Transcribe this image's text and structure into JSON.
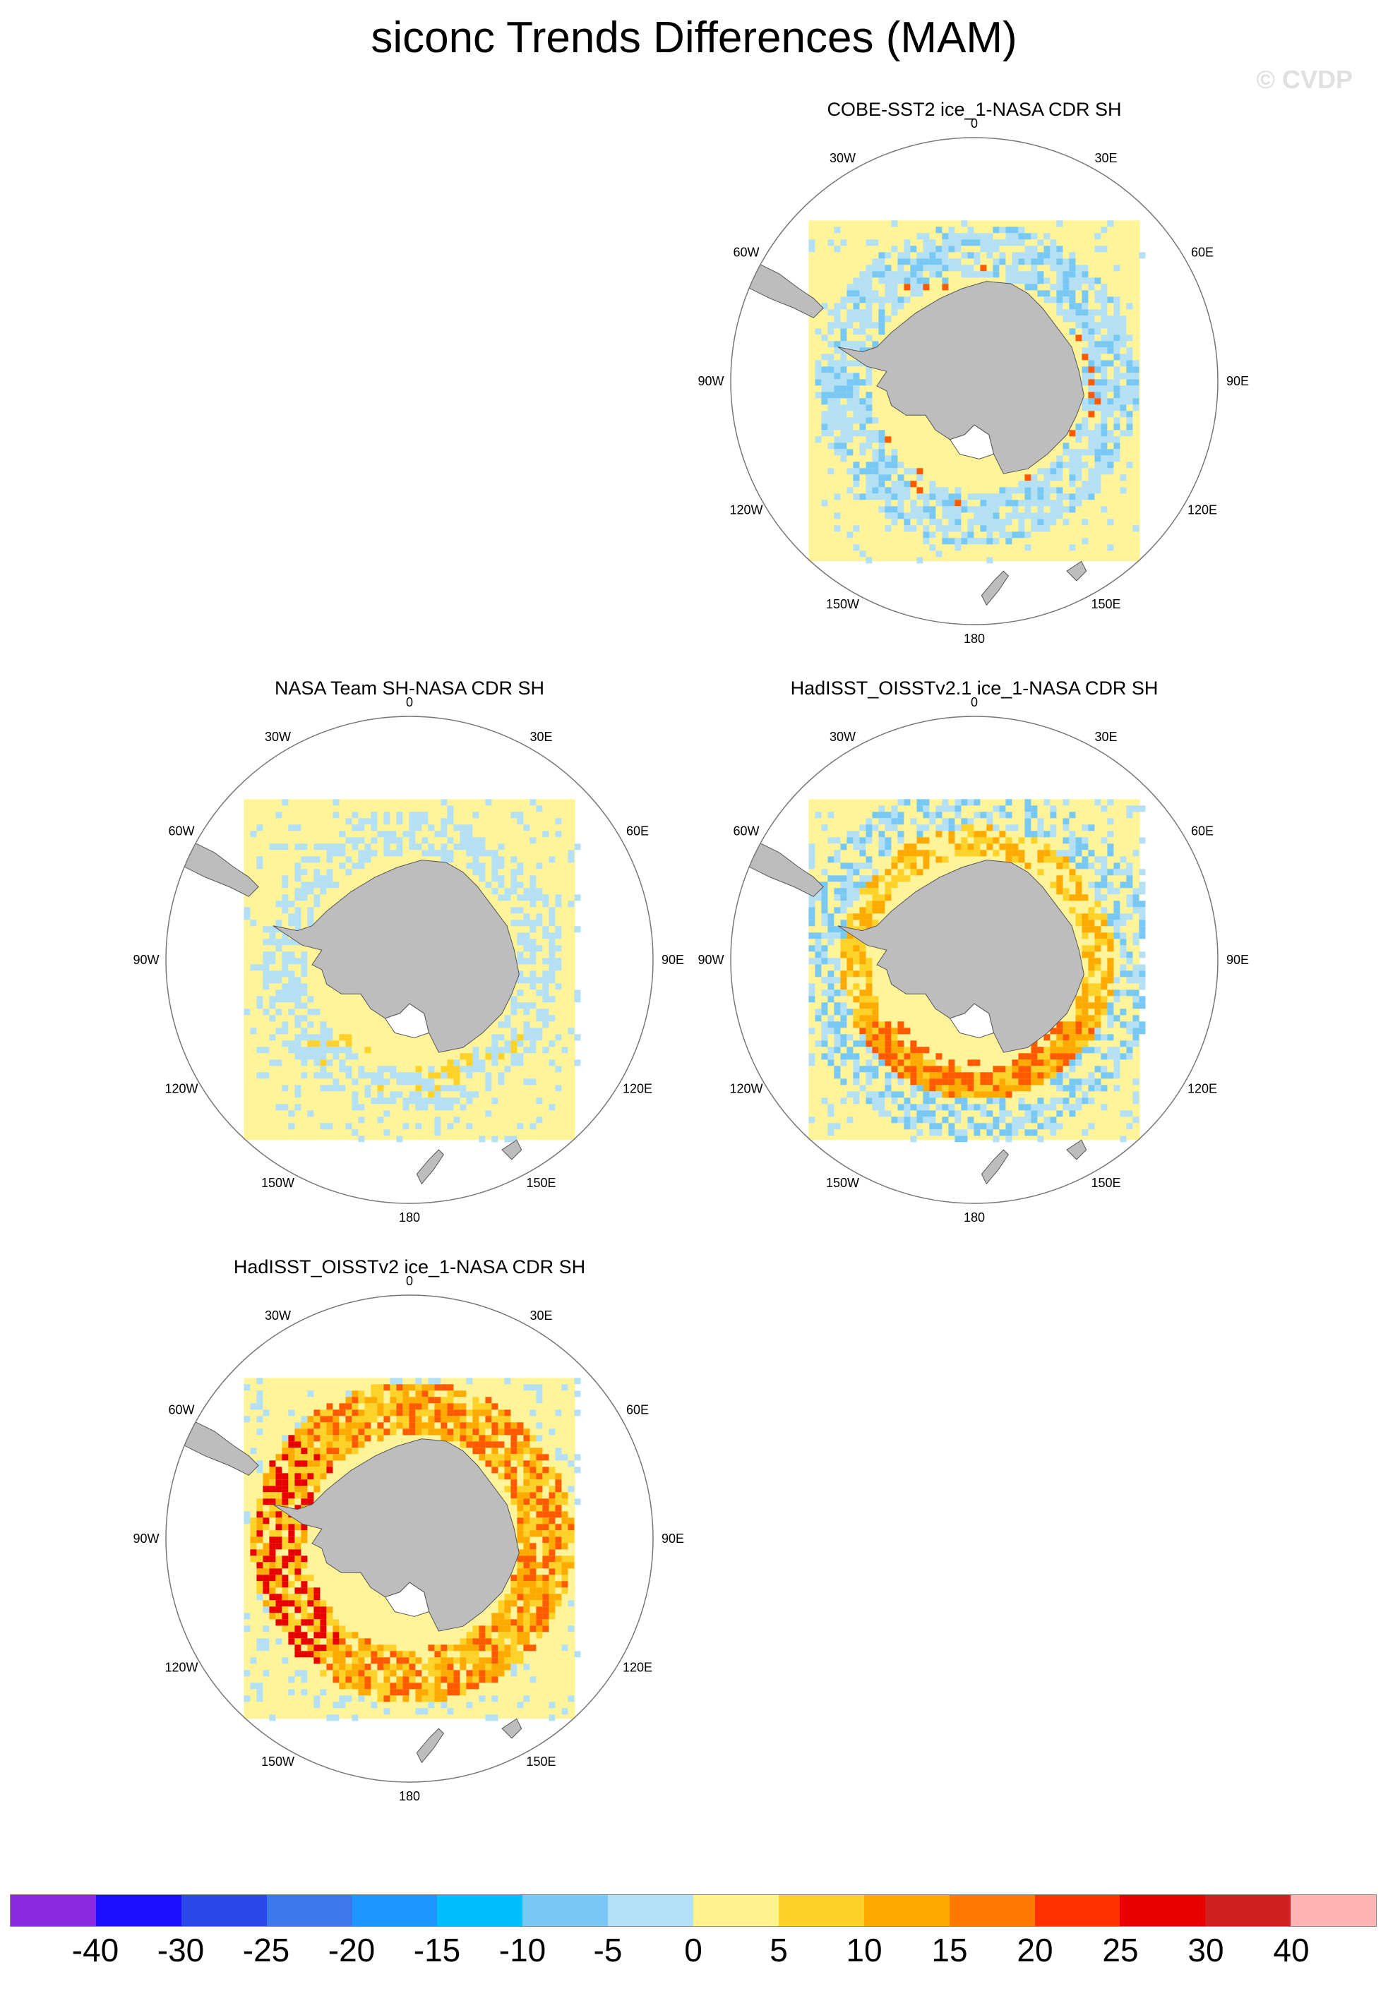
{
  "title": "siconc Trends Differences (MAM)",
  "watermark": "© CVDP",
  "panels": [
    {
      "title": "COBE-SST2 ice_1-NASA CDR SH",
      "pattern": "cobe"
    },
    {
      "title": "NASA Team SH-NASA CDR SH",
      "pattern": "nasateam"
    },
    {
      "title": "HadISST_OISSTv2.1 ice_1-NASA CDR SH",
      "pattern": "had21"
    },
    {
      "title": "HadISST_OISSTv2 ice_1-NASA CDR SH",
      "pattern": "had2"
    }
  ],
  "lon_labels": [
    "0",
    "30E",
    "60E",
    "90E",
    "120E",
    "150E",
    "180",
    "150W",
    "120W",
    "90W",
    "60W",
    "30W"
  ],
  "colorbar": {
    "colors": [
      "#8a2be2",
      "#1a0fff",
      "#2a48ea",
      "#3b78ec",
      "#1e96ff",
      "#00bfff",
      "#78c8f5",
      "#b4e0f5",
      "#fff28c",
      "#ffd229",
      "#ffaa00",
      "#ff7a00",
      "#ff3300",
      "#e80000",
      "#d21f1f",
      "#ffb4b4"
    ],
    "labels": [
      "-40",
      "-30",
      "-25",
      "-20",
      "-15",
      "-10",
      "-5",
      "0",
      "5",
      "10",
      "15",
      "20",
      "25",
      "30",
      "40"
    ]
  },
  "colors": {
    "land": "#bdbdbd",
    "ocean_field": "#fff49a",
    "neg_light": "#b4e0f5",
    "neg_mid": "#78c8f5",
    "pos_light": "#ffd229",
    "pos_mid": "#ffaa00",
    "pos_strong": "#ff5a00",
    "pos_max": "#e80000"
  }
}
